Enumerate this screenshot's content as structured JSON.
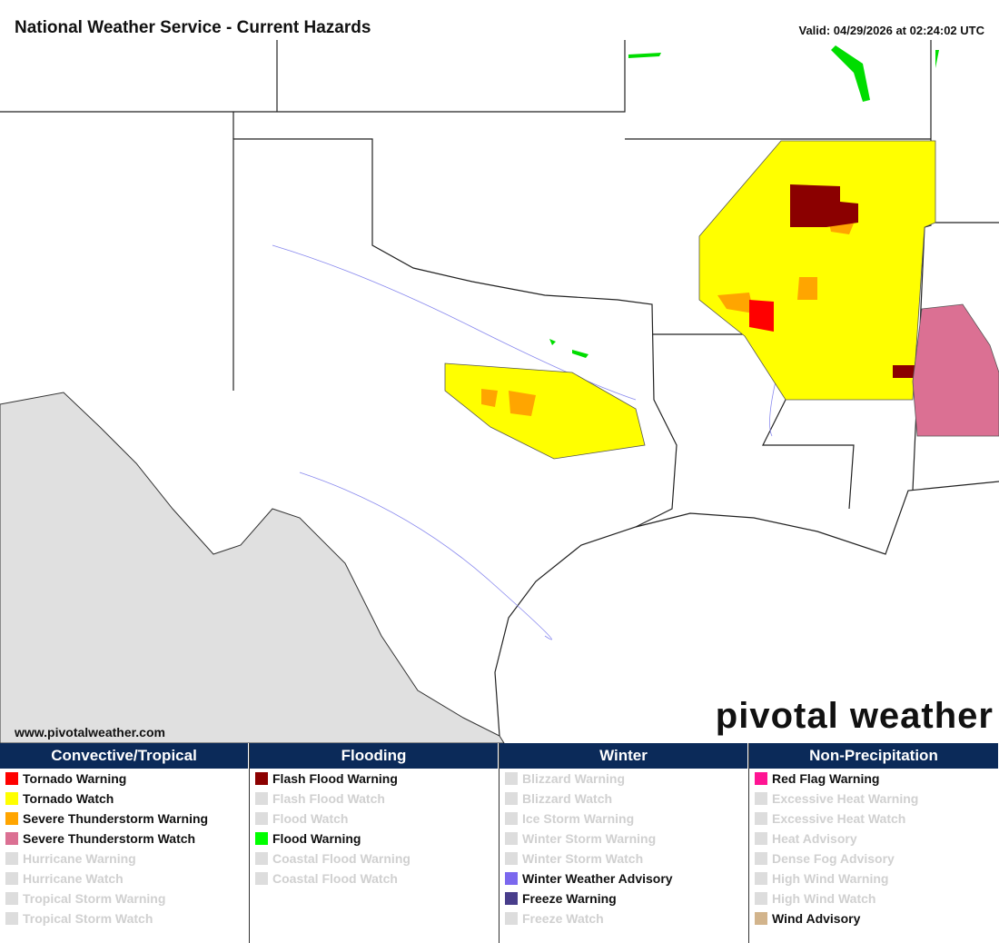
{
  "header": {
    "title": "National Weather Service - Current Hazards",
    "valid": "Valid: 04/29/2026 at 02:24:02 UTC"
  },
  "map": {
    "website": "www.pivotalweather.com",
    "logo": "pivotal weather"
  },
  "legend": [
    {
      "heading": "Convective/Tropical",
      "items": [
        {
          "label": "Tornado Warning",
          "active": true,
          "color": "#ff0000"
        },
        {
          "label": "Tornado Watch",
          "active": true,
          "color": "#ffff00"
        },
        {
          "label": "Severe Thunderstorm Warning",
          "active": true,
          "color": "#ffa500"
        },
        {
          "label": "Severe Thunderstorm Watch",
          "active": true,
          "color": "#db7093"
        },
        {
          "label": "Hurricane Warning",
          "active": false
        },
        {
          "label": "Hurricane Watch",
          "active": false
        },
        {
          "label": "Tropical Storm Warning",
          "active": false
        },
        {
          "label": "Tropical Storm Watch",
          "active": false
        }
      ]
    },
    {
      "heading": "Flooding",
      "items": [
        {
          "label": "Flash Flood Warning",
          "active": true,
          "color": "#8b0000"
        },
        {
          "label": "Flash Flood Watch",
          "active": false
        },
        {
          "label": "Flood Watch",
          "active": false
        },
        {
          "label": "Flood Warning",
          "active": true,
          "color": "#00ff00"
        },
        {
          "label": "Coastal Flood Warning",
          "active": false
        },
        {
          "label": "Coastal Flood Watch",
          "active": false
        }
      ]
    },
    {
      "heading": "Winter",
      "items": [
        {
          "label": "Blizzard Warning",
          "active": false
        },
        {
          "label": "Blizzard Watch",
          "active": false
        },
        {
          "label": "Ice Storm Warning",
          "active": false
        },
        {
          "label": "Winter Storm Warning",
          "active": false
        },
        {
          "label": "Winter Storm Watch",
          "active": false
        },
        {
          "label": "Winter Weather Advisory",
          "active": true,
          "color": "#7b68ee"
        },
        {
          "label": "Freeze Warning",
          "active": true,
          "color": "#483d8b"
        },
        {
          "label": "Freeze Watch",
          "active": false
        }
      ]
    },
    {
      "heading": "Non-Precipitation",
      "items": [
        {
          "label": "Red Flag Warning",
          "active": true,
          "color": "#ff1493"
        },
        {
          "label": "Excessive Heat Warning",
          "active": false
        },
        {
          "label": "Excessive Heat Watch",
          "active": false
        },
        {
          "label": "Heat Advisory",
          "active": false
        },
        {
          "label": "Dense Fog Advisory",
          "active": false
        },
        {
          "label": "High Wind Warning",
          "active": false
        },
        {
          "label": "High Wind Watch",
          "active": false
        },
        {
          "label": "Wind Advisory",
          "active": true,
          "color": "#d2b48c"
        }
      ]
    }
  ]
}
